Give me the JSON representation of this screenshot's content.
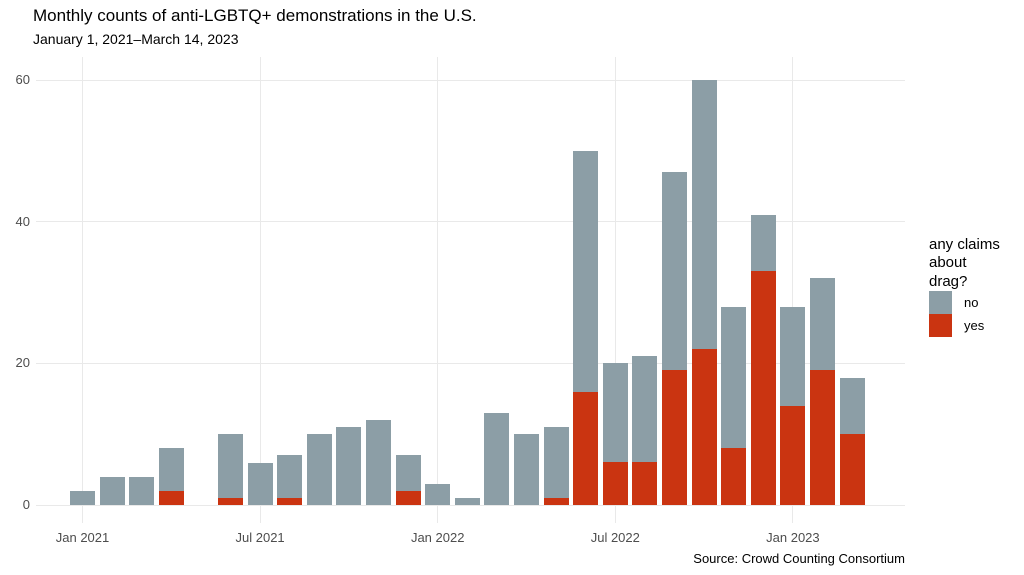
{
  "title": "Monthly counts of anti-LGBTQ+ demonstrations in the U.S.",
  "subtitle": "January 1, 2021–March 14, 2023",
  "caption": "Source: Crowd Counting Consortium",
  "legend": {
    "title_lines": [
      "any claims",
      "about",
      "drag?"
    ],
    "items": [
      {
        "label": "no",
        "color": "#8C9EA6"
      },
      {
        "label": "yes",
        "color": "#CA3411"
      }
    ]
  },
  "colors": {
    "no": "#8C9EA6",
    "yes": "#CA3411",
    "gridline": "#e9e9e9",
    "axis_text": "#4d4d4d",
    "background": "#ffffff"
  },
  "chart_data": {
    "type": "bar",
    "stacked": true,
    "title": "Monthly counts of anti-LGBTQ+ demonstrations in the U.S.",
    "subtitle": "January 1, 2021–March 14, 2023",
    "xlabel": "",
    "ylabel": "",
    "grid": true,
    "legend_position": "right",
    "legend_title": "any claims about drag?",
    "categories": [
      "Jan 2021",
      "Feb 2021",
      "Mar 2021",
      "Apr 2021",
      "May 2021",
      "Jun 2021",
      "Jul 2021",
      "Aug 2021",
      "Sep 2021",
      "Oct 2021",
      "Nov 2021",
      "Dec 2021",
      "Jan 2022",
      "Feb 2022",
      "Mar 2022",
      "Apr 2022",
      "May 2022",
      "Jun 2022",
      "Jul 2022",
      "Aug 2022",
      "Sep 2022",
      "Oct 2022",
      "Nov 2022",
      "Dec 2022",
      "Jan 2023",
      "Feb 2023",
      "Mar 2023"
    ],
    "series": [
      {
        "name": "no",
        "values": [
          2,
          4,
          4,
          6,
          0,
          9,
          6,
          6,
          10,
          11,
          12,
          5,
          3,
          1,
          13,
          10,
          10,
          34,
          14,
          15,
          28,
          38,
          20,
          8,
          14,
          13,
          8
        ]
      },
      {
        "name": "yes",
        "values": [
          0,
          0,
          0,
          2,
          0,
          1,
          0,
          1,
          0,
          0,
          0,
          2,
          0,
          0,
          0,
          0,
          1,
          16,
          6,
          6,
          19,
          22,
          8,
          33,
          14,
          19,
          10
        ]
      }
    ],
    "totals": [
      2,
      4,
      4,
      8,
      0,
      10,
      6,
      7,
      10,
      11,
      12,
      7,
      3,
      1,
      13,
      10,
      11,
      50,
      20,
      21,
      47,
      60,
      28,
      41,
      28,
      32,
      18
    ],
    "ylim": [
      0,
      60
    ],
    "yticks": [
      0,
      20,
      40,
      60
    ],
    "xticks": [
      {
        "index": 0,
        "label": "Jan 2021"
      },
      {
        "index": 6,
        "label": "Jul 2021"
      },
      {
        "index": 12,
        "label": "Jan 2022"
      },
      {
        "index": 18,
        "label": "Jul 2022"
      },
      {
        "index": 24,
        "label": "Jan 2023"
      }
    ]
  }
}
